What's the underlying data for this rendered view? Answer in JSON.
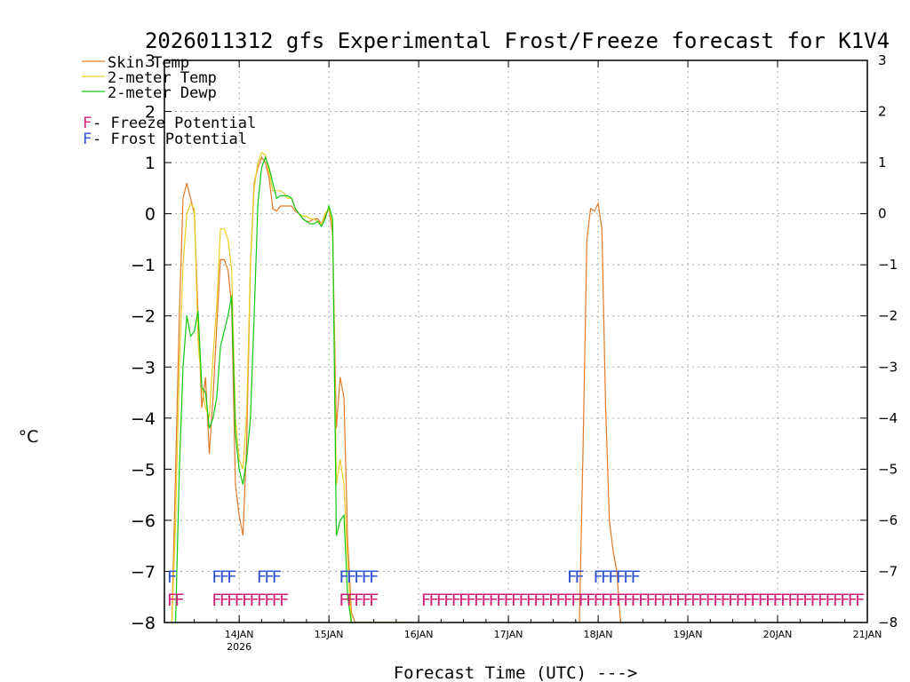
{
  "chart_data": {
    "type": "line",
    "title": "2026011312 gfs Experimental Frost/Freeze forecast for K1V4",
    "xlabel": "Forecast Time (UTC) --->",
    "ylabel": "°C",
    "ylim": [
      -8,
      3
    ],
    "xlim_hours": [
      -8,
      180
    ],
    "y_ticks": [
      -8,
      -7,
      -6,
      -5,
      -4,
      -3,
      -2,
      -1,
      0,
      1,
      2,
      3
    ],
    "x_ticks": [
      {
        "hour": 12,
        "label": "14JAN",
        "sublabel": "2026"
      },
      {
        "hour": 36,
        "label": "15JAN"
      },
      {
        "hour": 60,
        "label": "16JAN"
      },
      {
        "hour": 84,
        "label": "17JAN"
      },
      {
        "hour": 108,
        "label": "18JAN"
      },
      {
        "hour": 132,
        "label": "19JAN"
      },
      {
        "hour": 156,
        "label": "20JAN"
      },
      {
        "hour": 180,
        "label": "21JAN"
      }
    ],
    "grid": true,
    "legend": [
      {
        "label": "Skin Temp",
        "color": "#e07a28"
      },
      {
        "label": "2-meter Temp",
        "color": "#e8d020"
      },
      {
        "label": "2-meter Dewp",
        "color": "#10c810"
      }
    ],
    "potential_legend": [
      {
        "symbol": "F",
        "label": " - Freeze Potential",
        "color": "#d0207a"
      },
      {
        "symbol": "F",
        "label": " - Frost Potential",
        "color": "#3050d0"
      }
    ],
    "series": [
      {
        "name": "Skin Temp",
        "color": "#e07a28",
        "x": [
          -6,
          -5,
          -4,
          -3,
          -2,
          -1,
          0,
          1,
          2,
          3,
          4,
          5,
          6,
          7,
          8,
          9,
          10,
          11,
          12,
          13,
          14,
          15,
          16,
          17,
          18,
          19,
          20,
          21,
          22,
          23,
          24,
          25,
          26,
          27,
          28,
          29,
          30,
          31,
          32,
          33,
          34,
          35,
          36,
          37,
          38,
          39,
          40,
          41,
          42,
          43,
          44,
          45,
          46,
          47,
          48,
          49,
          50,
          51,
          52,
          53,
          54,
          55,
          56,
          57,
          58
        ],
        "values": [
          -8,
          -5,
          -2,
          0.3,
          0.6,
          0.3,
          0,
          -2,
          -3.8,
          -3.2,
          -4.7,
          -3.6,
          -2.2,
          -0.9,
          -0.9,
          -1.1,
          -1.8,
          -5.3,
          -5.9,
          -6.3,
          -4.5,
          -1,
          0.6,
          0.9,
          1.1,
          1.0,
          0.7,
          0.1,
          0.05,
          0.15,
          0.15,
          0.15,
          0.15,
          0.05,
          0,
          -0.1,
          -0.15,
          -0.15,
          -0.1,
          -0.1,
          -0.2,
          -0.05,
          0.1,
          -0.4,
          -4.2,
          -3.2,
          -3.6,
          -6.4,
          -7.8,
          -8,
          -8,
          -8,
          -8,
          -8,
          -8,
          -8,
          -8,
          -8,
          -8,
          -8,
          -8,
          -8,
          -8,
          -8,
          -8
        ]
      },
      {
        "name": "2-meter Temp",
        "color": "#e8d020",
        "x": [
          -6,
          -5,
          -4,
          -3,
          -2,
          -1,
          0,
          1,
          2,
          3,
          4,
          5,
          6,
          7,
          8,
          9,
          10,
          11,
          12,
          13,
          14,
          15,
          16,
          17,
          18,
          19,
          20,
          21,
          22,
          23,
          24,
          25,
          26,
          27,
          28,
          29,
          30,
          31,
          32,
          33,
          34,
          35,
          36,
          37,
          38,
          39,
          40,
          41,
          42,
          43,
          44,
          45,
          46,
          47,
          48,
          49,
          50,
          51,
          52,
          53,
          54,
          55,
          56,
          57,
          58
        ],
        "values": [
          -8,
          -6,
          -3,
          -1,
          0,
          0.2,
          0.1,
          -2.5,
          -3.4,
          -3.8,
          -4.0,
          -2.8,
          -1.8,
          -0.3,
          -0.3,
          -0.5,
          -1.1,
          -4.0,
          -4.8,
          -5.0,
          -3.9,
          -1,
          0.5,
          1.0,
          1.2,
          1.15,
          0.8,
          0.45,
          0.45,
          0.45,
          0.4,
          0.3,
          0.3,
          0.1,
          0,
          -0.05,
          -0.05,
          -0.1,
          -0.1,
          -0.15,
          -0.2,
          0,
          0.1,
          -0.2,
          -5.3,
          -4.8,
          -5.3,
          -6.8,
          -8,
          -8,
          -8,
          -8,
          -8,
          -8,
          -8,
          -8,
          -8,
          -8,
          -8,
          -8,
          -8,
          -8,
          -8,
          -8,
          -8
        ]
      },
      {
        "name": "2-meter Dewp",
        "color": "#10c810",
        "x": [
          -6,
          -5,
          -4,
          -3,
          -2,
          -1,
          0,
          1,
          2,
          3,
          4,
          5,
          6,
          7,
          8,
          9,
          10,
          11,
          12,
          13,
          14,
          15,
          16,
          17,
          18,
          19,
          20,
          21,
          22,
          23,
          24,
          25,
          26,
          27,
          28,
          29,
          30,
          31,
          32,
          33,
          34,
          35,
          36,
          37,
          38,
          39,
          40,
          41,
          42,
          43,
          44,
          45,
          46,
          47,
          48,
          49,
          50,
          51,
          52,
          53,
          54,
          55,
          56,
          57,
          58
        ],
        "values": [
          -8,
          -8,
          -5,
          -3,
          -2,
          -2.4,
          -2.3,
          -1.9,
          -3.4,
          -3.5,
          -4.2,
          -4.0,
          -3.6,
          -2.6,
          -2.3,
          -2.0,
          -1.6,
          -4.3,
          -5.0,
          -5.3,
          -4.8,
          -4.0,
          -2,
          0.2,
          0.9,
          1.1,
          0.9,
          0.6,
          0.3,
          0.35,
          0.35,
          0.35,
          0.3,
          0.1,
          0,
          -0.1,
          -0.15,
          -0.2,
          -0.2,
          -0.15,
          -0.25,
          -0.1,
          0.15,
          -0.1,
          -6.3,
          -6.0,
          -5.9,
          -7.5,
          -8,
          -8,
          -8,
          -8,
          -8,
          -8,
          -8,
          -8,
          -8,
          -8,
          -8,
          -8,
          -8,
          -8,
          -8,
          -8,
          -8
        ]
      },
      {
        "name": "Skin Temp (18JAN)",
        "color": "#e07a28",
        "x": [
          103,
          104,
          105,
          106,
          107,
          108,
          109,
          110,
          111,
          112,
          113,
          114,
          115,
          116,
          117
        ],
        "values": [
          -8,
          -4.5,
          -0.5,
          0.1,
          0.05,
          0.2,
          -0.3,
          -3.8,
          -6.0,
          -6.6,
          -7.0,
          -8,
          -8,
          -8,
          -8
        ]
      }
    ],
    "frost_potential_hours": [
      -6,
      6,
      8,
      10,
      18,
      20,
      22,
      40,
      42,
      44,
      46,
      48,
      101,
      103,
      108,
      110,
      112,
      114,
      116,
      118
    ],
    "freeze_potential_hours": [
      -6,
      -4,
      6,
      8,
      10,
      12,
      14,
      16,
      18,
      20,
      22,
      24,
      40,
      42,
      44,
      46,
      48,
      62,
      64,
      66,
      68,
      70,
      72,
      74,
      76,
      78,
      80,
      82,
      84,
      86,
      88,
      90,
      92,
      94,
      96,
      98,
      100,
      102,
      104,
      106,
      108,
      110,
      112,
      114,
      116,
      118,
      120,
      122,
      124,
      126,
      128,
      130,
      132,
      134,
      136,
      138,
      140,
      142,
      144,
      146,
      148,
      150,
      152,
      154,
      156,
      158,
      160,
      162,
      164,
      166,
      168,
      170,
      172,
      174,
      176,
      178
    ]
  }
}
